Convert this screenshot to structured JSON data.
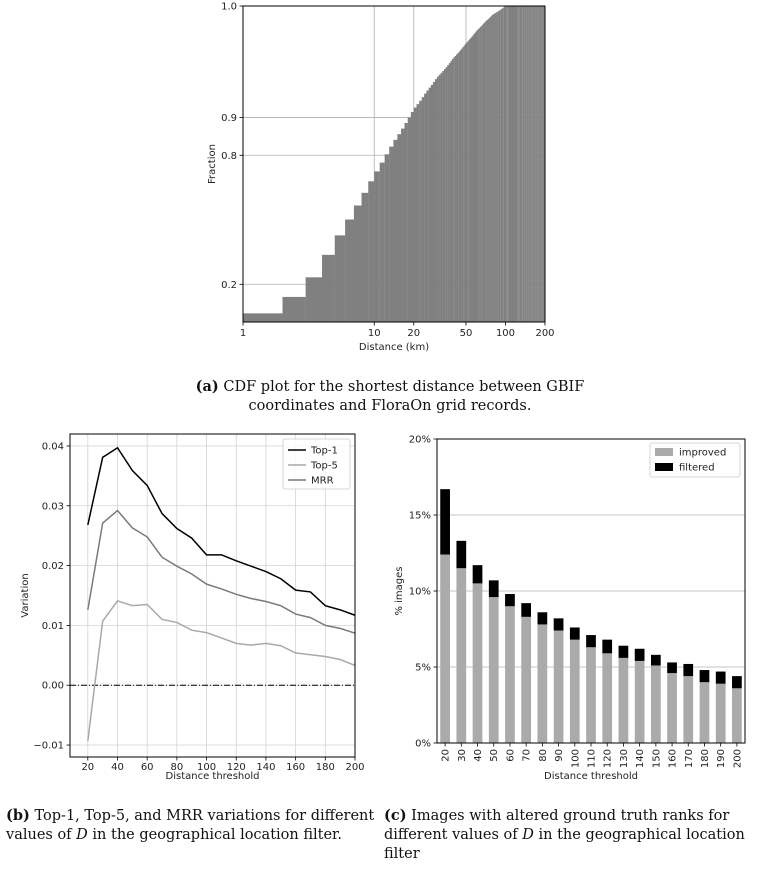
{
  "chart_data": [
    {
      "id": "a",
      "type": "bar",
      "ylabel": "Fraction",
      "xlabel": "Distance (km)",
      "x_scale": "log",
      "y_scale": "logit",
      "xlim": [
        1,
        200
      ],
      "ylim": [
        0.1,
        0.99
      ],
      "x_ticks": [
        "1",
        "10",
        "20",
        "50",
        "100",
        "200"
      ],
      "y_ticks": [
        "0.2",
        "0.8",
        "0.9",
        "1.0"
      ],
      "grid": true,
      "cdf_x": [
        1,
        1.5,
        2,
        2.5,
        3,
        3.5,
        4,
        4.5,
        5,
        6,
        7,
        8,
        9,
        10,
        12,
        14,
        16,
        18,
        20,
        25,
        30,
        40,
        50,
        60,
        70,
        80,
        90,
        100,
        200
      ],
      "cdf_y": [
        0.105,
        0.118,
        0.135,
        0.16,
        0.19,
        0.225,
        0.27,
        0.32,
        0.37,
        0.46,
        0.54,
        0.61,
        0.67,
        0.72,
        0.79,
        0.84,
        0.87,
        0.895,
        0.915,
        0.94,
        0.955,
        0.97,
        0.978,
        0.983,
        0.986,
        0.988,
        0.989,
        0.99,
        0.99
      ],
      "caption_label": "(a)",
      "caption_text": "CDF plot for the shortest distance between GBIF coordinates and FloraOn grid records."
    },
    {
      "id": "b",
      "type": "line",
      "xlabel": "Distance threshold",
      "ylabel": "Variation",
      "xlim": [
        8,
        200
      ],
      "ylim": [
        -0.012,
        0.042
      ],
      "x_ticks": [
        20,
        40,
        60,
        80,
        100,
        120,
        140,
        160,
        180,
        200
      ],
      "y_ticks": [
        "−0.01",
        "0.00",
        "0.01",
        "0.02",
        "0.03",
        "0.04"
      ],
      "y_tick_values": [
        -0.01,
        0,
        0.01,
        0.02,
        0.03,
        0.04
      ],
      "x": [
        20,
        30,
        40,
        50,
        60,
        70,
        80,
        90,
        100,
        110,
        120,
        130,
        140,
        150,
        160,
        170,
        180,
        190,
        200
      ],
      "series": [
        {
          "name": "Top-1",
          "color": "#000000",
          "values": [
            0.0268,
            0.0381,
            0.0397,
            0.0359,
            0.0334,
            0.0287,
            0.0262,
            0.0246,
            0.0218,
            0.0218,
            0.0208,
            0.0199,
            0.019,
            0.0178,
            0.0159,
            0.0156,
            0.0133,
            0.0126,
            0.0117
          ]
        },
        {
          "name": "Top-5",
          "color": "#a9a9a9",
          "values": [
            -0.0093,
            0.0107,
            0.0141,
            0.0133,
            0.0135,
            0.011,
            0.0105,
            0.0092,
            0.0088,
            0.0079,
            0.007,
            0.0067,
            0.007,
            0.0066,
            0.0054,
            0.0051,
            0.0048,
            0.0043,
            0.0033
          ]
        },
        {
          "name": "MRR",
          "color": "#7a7a7a",
          "values": [
            0.0126,
            0.0271,
            0.0292,
            0.0263,
            0.0248,
            0.0214,
            0.0199,
            0.0186,
            0.0169,
            0.0161,
            0.0152,
            0.0145,
            0.014,
            0.0133,
            0.0119,
            0.0113,
            0.01,
            0.0095,
            0.0087
          ]
        }
      ],
      "zero_line": true,
      "legend_position": "top-right",
      "caption_label": "(b)",
      "caption_text_pre": "Top-1, Top-5, and MRR variations for different values of",
      "caption_var": "D",
      "caption_text_post": "in the geographical location filter."
    },
    {
      "id": "c",
      "type": "bar",
      "stacked": true,
      "xlabel": "Distance threshold",
      "ylabel": "% images",
      "ylim": [
        0,
        20
      ],
      "y_ticks": [
        "0%",
        "5%",
        "10%",
        "15%",
        "20%"
      ],
      "y_tick_values": [
        0,
        5,
        10,
        15,
        20
      ],
      "categories": [
        "20",
        "30",
        "40",
        "50",
        "60",
        "70",
        "80",
        "90",
        "100",
        "110",
        "120",
        "130",
        "140",
        "150",
        "160",
        "170",
        "180",
        "190",
        "200"
      ],
      "series": [
        {
          "name": "improved",
          "color": "#aaaaaa",
          "values": [
            12.4,
            11.5,
            10.5,
            9.6,
            9.0,
            8.3,
            7.8,
            7.4,
            6.8,
            6.3,
            5.9,
            5.6,
            5.4,
            5.1,
            4.6,
            4.4,
            4.0,
            3.9,
            3.6
          ]
        },
        {
          "name": "filtered",
          "color": "#000000",
          "values": [
            4.3,
            1.8,
            1.2,
            1.1,
            0.8,
            0.9,
            0.8,
            0.8,
            0.8,
            0.8,
            0.9,
            0.8,
            0.8,
            0.7,
            0.7,
            0.8,
            0.8,
            0.8,
            0.8
          ]
        }
      ],
      "grid": "y",
      "legend_position": "top-right",
      "caption_label": "(c)",
      "caption_text_pre": "Images with altered ground truth ranks for different values of",
      "caption_var": "D",
      "caption_text_post": "in the geographical location filter"
    }
  ]
}
